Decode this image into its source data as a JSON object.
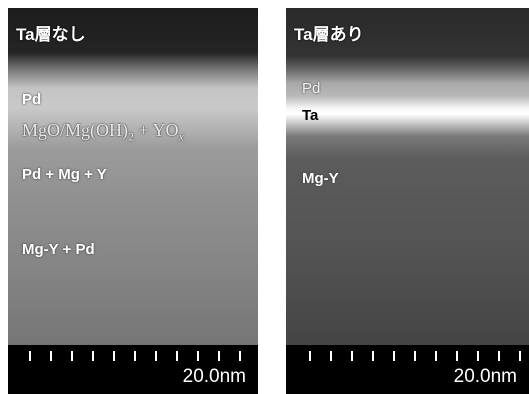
{
  "panels": [
    {
      "title": "Ta層なし",
      "labels": [
        "Pd",
        {
          "parts": [
            "MgO/Mg(OH)",
            "2",
            " + YO",
            "x"
          ]
        },
        "Pd + Mg + Y",
        "Mg-Y + Pd"
      ],
      "scale": "20.0nm"
    },
    {
      "title": "Ta層あり",
      "labels": [
        "Pd",
        "Ta",
        "Mg-Y"
      ],
      "scale": "20.0nm"
    }
  ]
}
